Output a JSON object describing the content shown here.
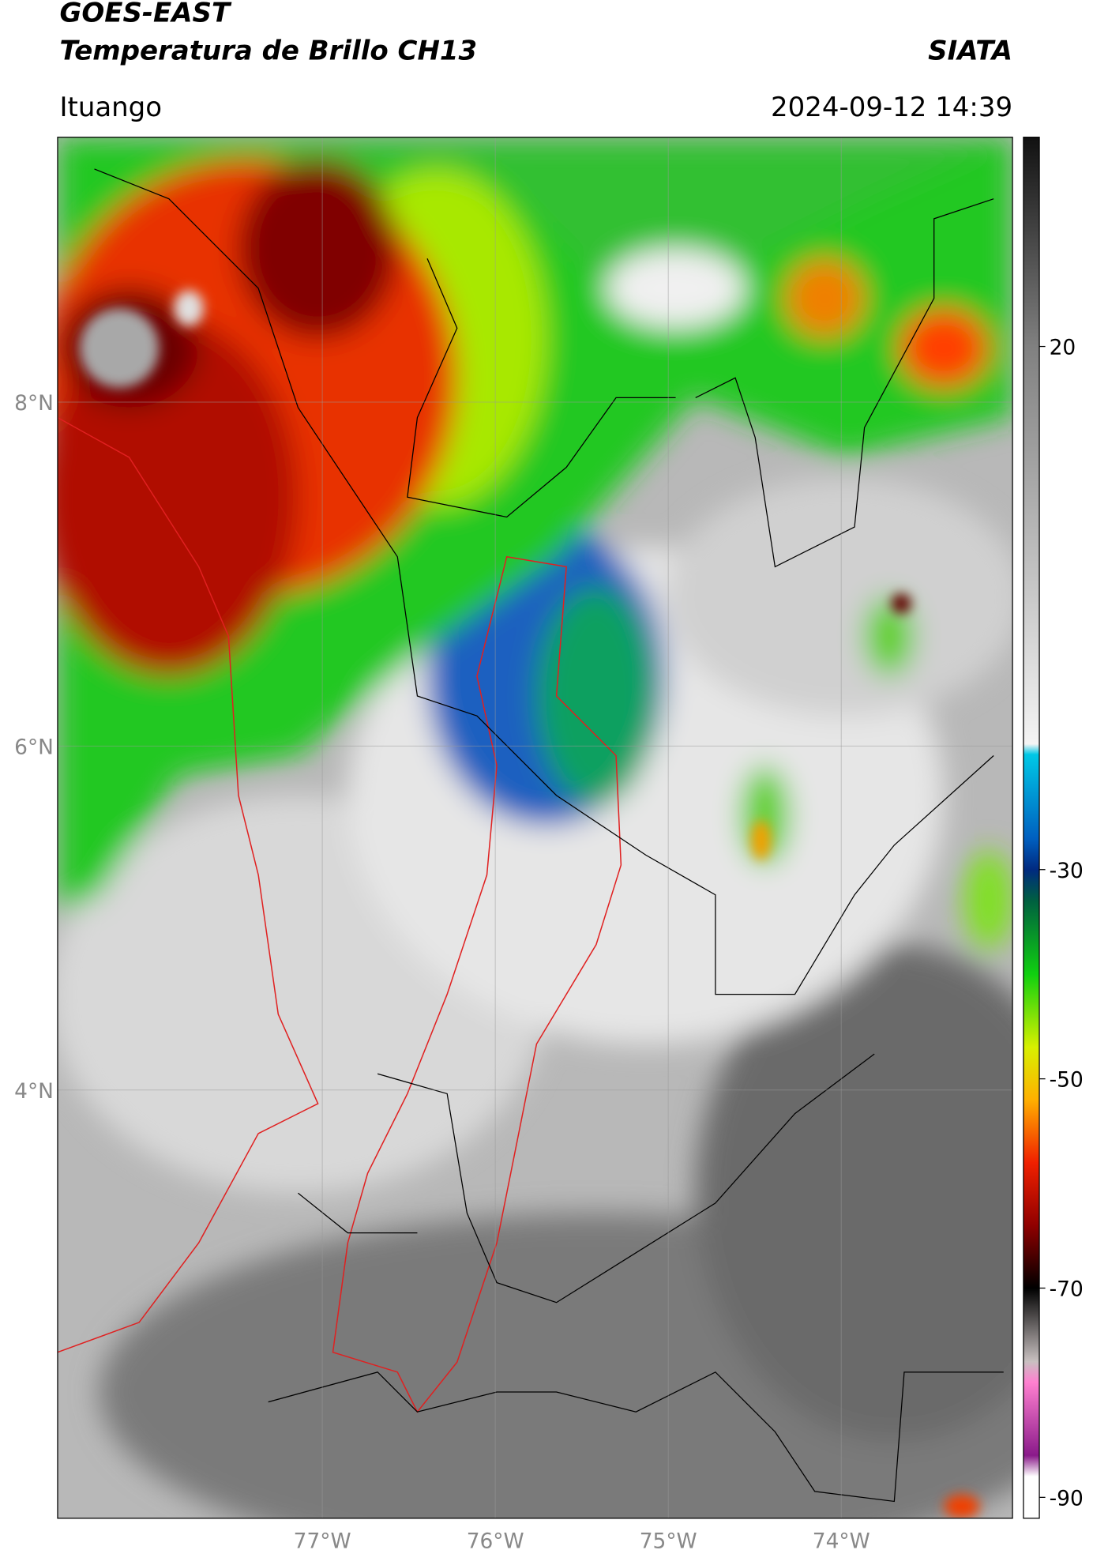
{
  "header": {
    "title": "GOES-EAST",
    "subtitle": "Temperatura de Brillo CH13",
    "source": "SIATA",
    "location": "Ituango",
    "datetime": "2024-09-12 14:39"
  },
  "map": {
    "lon_range": [
      -78.53,
      -73.01
    ],
    "lat_range": [
      1.51,
      9.54
    ],
    "lat_ticks": [
      {
        "value": 8,
        "label": "8°N"
      },
      {
        "value": 6,
        "label": "6°N"
      },
      {
        "value": 4,
        "label": "4°N"
      }
    ],
    "lon_ticks": [
      {
        "value": -77,
        "label": "77°W"
      },
      {
        "value": -76,
        "label": "76°W"
      },
      {
        "value": -75,
        "label": "75°W"
      },
      {
        "value": -74,
        "label": "74°W"
      }
    ],
    "grid": true
  },
  "colorbar": {
    "range": [
      -92,
      40
    ],
    "ticks": [
      20,
      -30,
      -50,
      -70,
      -90
    ],
    "stops": [
      {
        "value": 40,
        "color": "#111111"
      },
      {
        "value": 20,
        "color": "#808080"
      },
      {
        "value": -18,
        "color": "#f4f4f4"
      },
      {
        "value": -19,
        "color": "#00c8e6"
      },
      {
        "value": -27,
        "color": "#0060c0"
      },
      {
        "value": -30,
        "color": "#002a80"
      },
      {
        "value": -33,
        "color": "#006040"
      },
      {
        "value": -40,
        "color": "#10d010"
      },
      {
        "value": -47,
        "color": "#d8f000"
      },
      {
        "value": -52,
        "color": "#ffb000"
      },
      {
        "value": -58,
        "color": "#f02000"
      },
      {
        "value": -64,
        "color": "#900000"
      },
      {
        "value": -68,
        "color": "#300000"
      },
      {
        "value": -70,
        "color": "#000000"
      },
      {
        "value": -77,
        "color": "#c8c0c0"
      },
      {
        "value": -79,
        "color": "#ff80d0"
      },
      {
        "value": -86,
        "color": "#8a1a8a"
      },
      {
        "value": -88,
        "color": "#ffffff"
      }
    ]
  }
}
